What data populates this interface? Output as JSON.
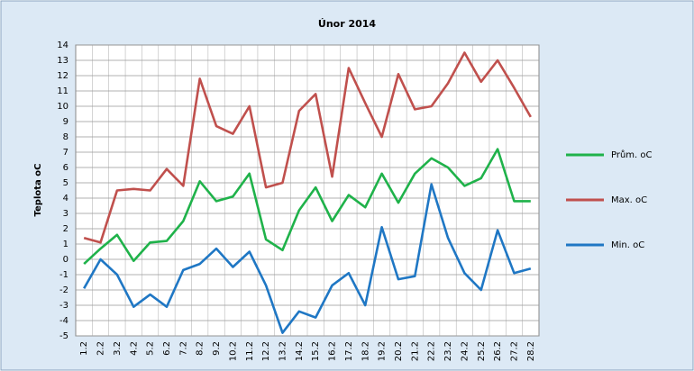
{
  "chart_data": {
    "type": "line",
    "title": "Únor 2014",
    "y_label": "Teplota oC",
    "categories": [
      "1.2",
      "2.2",
      "3.2",
      "4.2",
      "5.2",
      "6.2",
      "7.2",
      "8.2",
      "9.2",
      "10.2",
      "11.2",
      "12.2",
      "13.2",
      "14.2",
      "15.2",
      "16.2",
      "17.2",
      "18.2",
      "19.2",
      "20.2",
      "21.2",
      "22.2",
      "23.2",
      "24.2",
      "25.2",
      "26.2",
      "27.2",
      "28.2"
    ],
    "series": [
      {
        "name": "Prům. oC",
        "color": "#1fb24a",
        "values": [
          -0.3,
          0.7,
          1.6,
          -0.1,
          1.1,
          1.2,
          2.5,
          5.1,
          3.8,
          4.1,
          5.6,
          1.3,
          0.6,
          3.2,
          4.7,
          2.5,
          4.2,
          3.4,
          5.6,
          3.7,
          5.6,
          6.6,
          6.0,
          4.8,
          5.3,
          7.2,
          3.8,
          3.8
        ]
      },
      {
        "name": "Max. oC",
        "color": "#c0504d",
        "values": [
          1.4,
          1.1,
          4.5,
          4.6,
          4.5,
          5.9,
          4.8,
          11.8,
          8.7,
          8.2,
          10.0,
          4.7,
          5.0,
          9.7,
          10.8,
          5.4,
          12.5,
          10.2,
          8.0,
          12.1,
          9.8,
          10.0,
          11.5,
          13.5,
          11.6,
          13.0,
          11.2,
          9.3
        ]
      },
      {
        "name": "Min. oC",
        "color": "#1f77c4",
        "values": [
          -1.9,
          0.0,
          -1.0,
          -3.1,
          -2.3,
          -3.1,
          -0.7,
          -0.3,
          0.7,
          -0.5,
          0.5,
          -1.7,
          -4.8,
          -3.4,
          -3.8,
          -1.7,
          -0.9,
          -3.0,
          2.1,
          -1.3,
          -1.1,
          4.9,
          1.4,
          -0.9,
          -2.0,
          1.9,
          -0.9,
          -0.6
        ]
      }
    ],
    "ylim": [
      -5,
      14
    ],
    "yticks": [
      -5,
      -4,
      -3,
      -2,
      -1,
      0,
      1,
      2,
      3,
      4,
      5,
      6,
      7,
      8,
      9,
      10,
      11,
      12,
      13,
      14
    ],
    "grid": true,
    "legend": "right"
  }
}
